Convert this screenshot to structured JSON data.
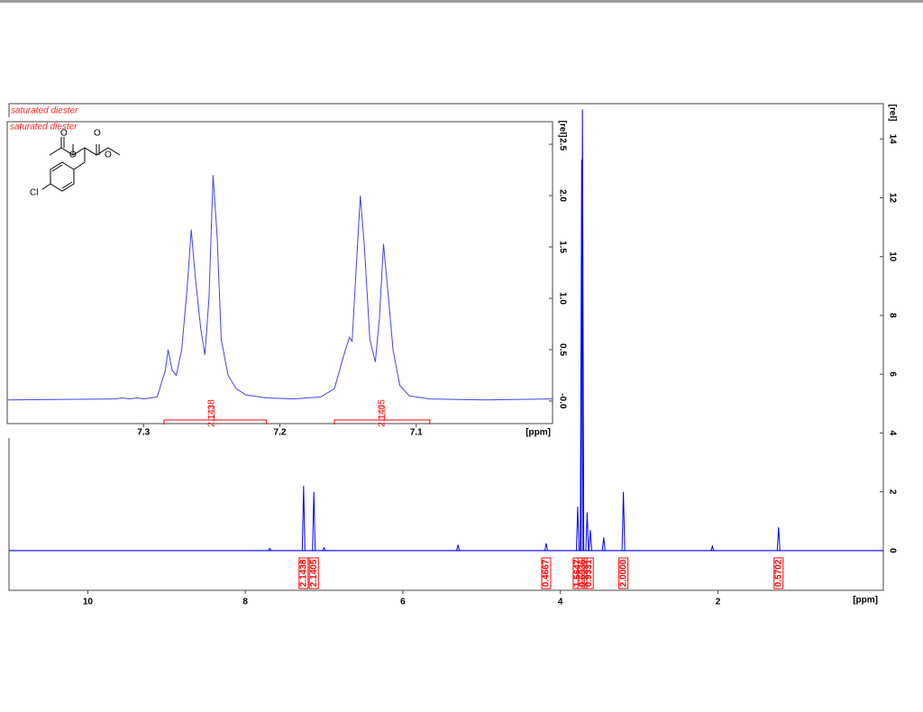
{
  "chart_data": [
    {
      "type": "stem",
      "title": "saturated diester",
      "color": "#0000ff",
      "integral_color": "#ff0000",
      "x_label": "[ppm]",
      "y_label": "[rel]",
      "xlim": [
        11,
        -0.1
      ],
      "ylim": [
        -1.35,
        15.2
      ],
      "xticks": [
        10,
        8,
        6,
        4,
        2
      ],
      "yticks": [
        0,
        2,
        4,
        6,
        8,
        10,
        12,
        14
      ],
      "x": [
        7.69,
        7.26,
        7.13,
        7.0,
        5.3,
        4.18,
        3.78,
        3.73,
        3.72,
        3.66,
        3.62,
        3.45,
        3.2,
        2.07,
        1.23
      ],
      "values": [
        0.08,
        2.2,
        2.0,
        0.1,
        0.2,
        0.25,
        1.5,
        13.3,
        15.0,
        1.3,
        0.7,
        0.45,
        2.0,
        0.15,
        0.8
      ],
      "integrals": [
        {
          "ppm": 7.26,
          "label": "2.1438"
        },
        {
          "ppm": 7.13,
          "label": "2.1405"
        },
        {
          "ppm": 4.18,
          "label": "0.4667"
        },
        {
          "ppm": 3.78,
          "label": "1.5647"
        },
        {
          "ppm": 3.72,
          "label": "0.6936"
        },
        {
          "ppm": 3.64,
          "label": "0.9331"
        },
        {
          "ppm": 3.2,
          "label": "2.0000"
        },
        {
          "ppm": 1.23,
          "label": "0.5702"
        }
      ]
    },
    {
      "type": "line",
      "title": "saturated diester",
      "color": "#4444ee",
      "integral_color": "#ff0000",
      "x_label": "[ppm]",
      "y_label": "[rel]",
      "xlim": [
        7.4,
        7.0
      ],
      "ylim": [
        -0.22,
        2.72
      ],
      "xticks": [
        7.3,
        7.2,
        7.1
      ],
      "yticks": [
        {
          "value": 0,
          "label": "-0.0"
        },
        0.5,
        {
          "value": 1,
          "label": "1.0"
        },
        1.5,
        {
          "value": 2,
          "label": "2.0"
        },
        2.5
      ],
      "x": [
        7.4,
        7.32,
        7.316,
        7.31,
        7.305,
        7.3,
        7.29,
        7.284,
        7.282,
        7.279,
        7.276,
        7.272,
        7.268,
        7.265,
        7.262,
        7.258,
        7.255,
        7.252,
        7.249,
        7.246,
        7.243,
        7.238,
        7.232,
        7.225,
        7.21,
        7.19,
        7.17,
        7.16,
        7.153,
        7.149,
        7.147,
        7.144,
        7.141,
        7.138,
        7.134,
        7.13,
        7.127,
        7.124,
        7.121,
        7.117,
        7.112,
        7.105,
        7.09,
        7.05,
        7.0
      ],
      "values": [
        0.01,
        0.02,
        0.03,
        0.02,
        0.03,
        0.02,
        0.04,
        0.3,
        0.5,
        0.3,
        0.25,
        0.5,
        1.1,
        1.67,
        1.2,
        0.7,
        0.45,
        1.0,
        2.2,
        1.6,
        0.6,
        0.25,
        0.12,
        0.06,
        0.03,
        0.02,
        0.04,
        0.12,
        0.45,
        0.62,
        0.58,
        1.3,
        2.0,
        1.5,
        0.6,
        0.38,
        0.8,
        1.53,
        1.1,
        0.5,
        0.15,
        0.05,
        0.02,
        0.01,
        0.02
      ],
      "integrals": [
        {
          "from": 7.285,
          "to": 7.21,
          "ppm": 7.25,
          "label": "2.1438"
        },
        {
          "from": 7.16,
          "to": 7.09,
          "ppm": 7.125,
          "label": "2.1405"
        }
      ]
    }
  ],
  "molecule": {
    "atom_label": "Cl"
  }
}
